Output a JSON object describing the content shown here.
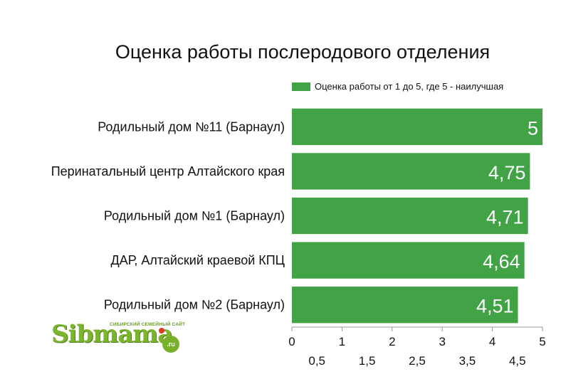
{
  "chart_data": {
    "type": "bar",
    "orientation": "horizontal",
    "title": "Оценка работы послеродового отделения",
    "categories": [
      "Родильный дом №11 (Барнаул)",
      "Перинатальный центр Алтайского края",
      "Родильный дом №1 (Барнаул)",
      "ДАР, Алтайский краевой КПЦ",
      "Родильный дом №2 (Барнаул)"
    ],
    "series": [
      {
        "name": "Оценка работы от 1 до 5, где 5 - наилучшая",
        "values": [
          5,
          4.75,
          4.71,
          4.64,
          4.51
        ],
        "labels": [
          "5",
          "4,75",
          "4,71",
          "4,64",
          "4,51"
        ],
        "color": "#42a246"
      }
    ],
    "xlim": [
      0,
      5
    ],
    "ticks_major": [
      "0",
      "1",
      "2",
      "3",
      "4",
      "5"
    ],
    "ticks_minor": [
      "0,5",
      "1,5",
      "2,5",
      "3,5",
      "4,5"
    ],
    "grid": false,
    "legend_position": "top-right"
  },
  "logo": {
    "tagline": "СИБИРСКИЙ СЕМЕЙНЫЙ САЙТ",
    "wordmark": "Sibmama",
    "suffix": ".ru"
  }
}
